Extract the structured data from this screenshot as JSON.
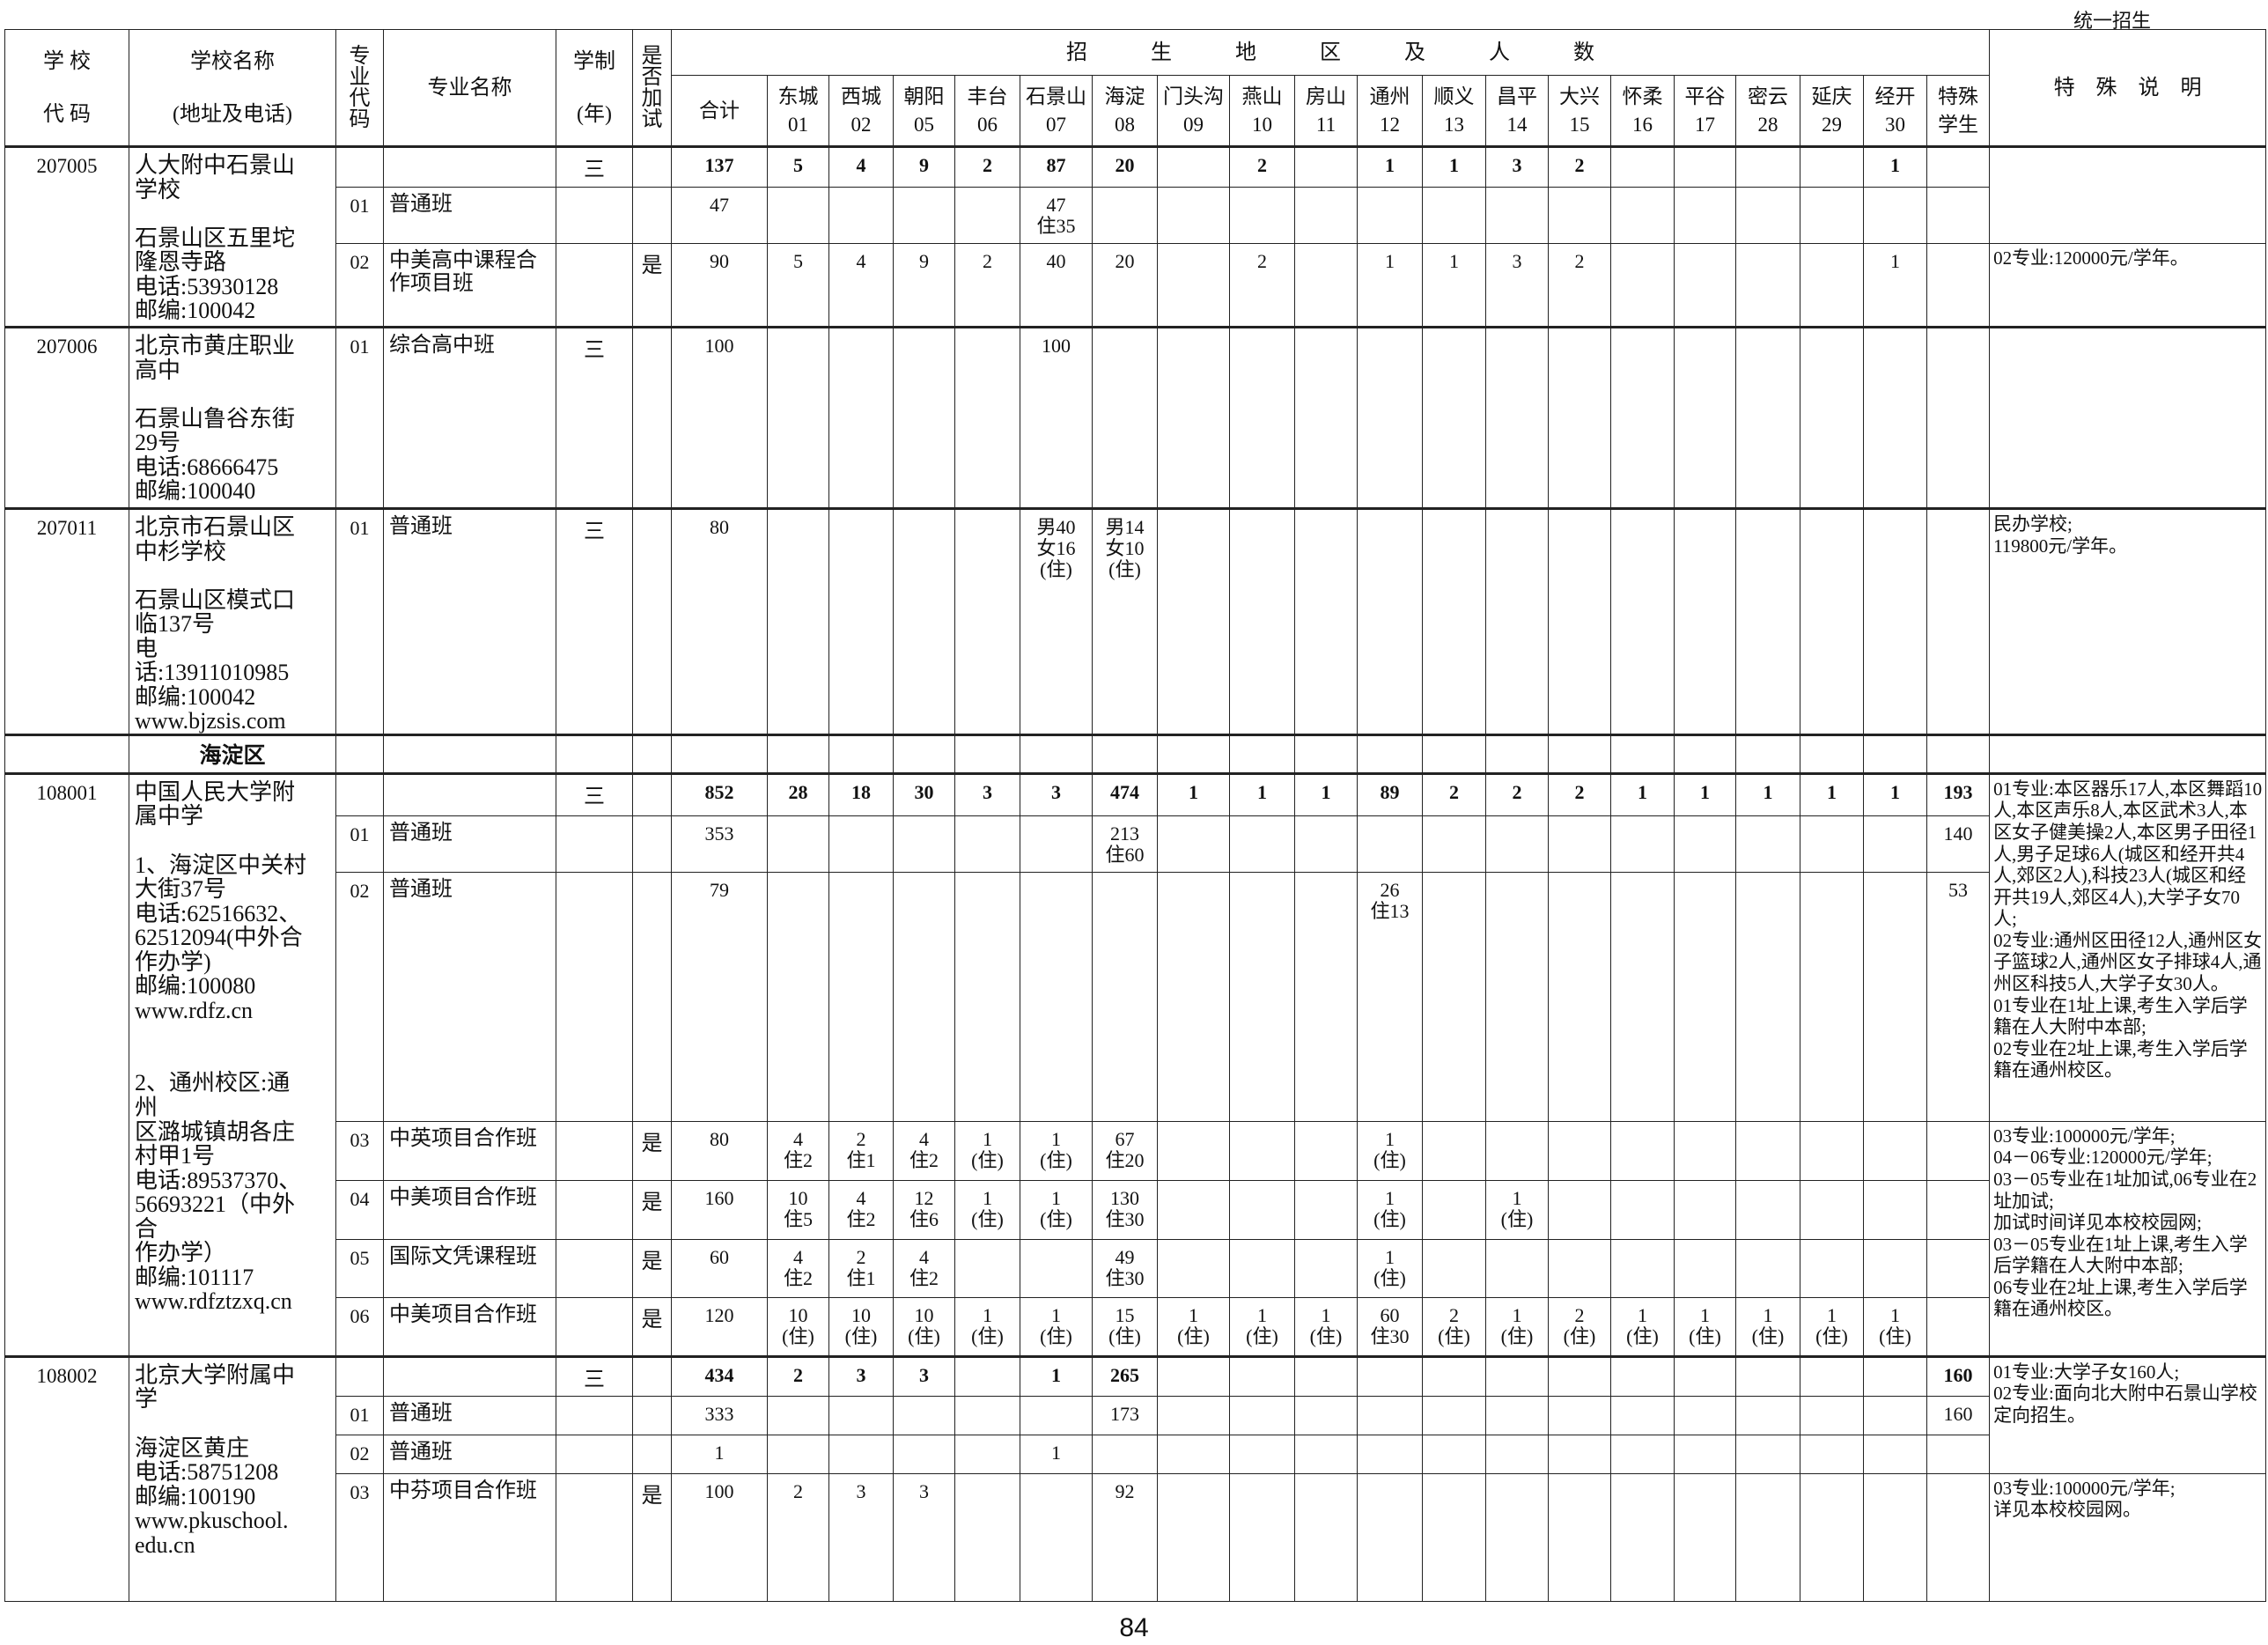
{
  "header": {
    "top_right": "统一招生",
    "school_code": "学 校\n\n代 码",
    "school_name": "学校名称\n\n(地址及电话)",
    "major_code": "专\n业\n代\n码",
    "major_name": "专业名称",
    "years": "学制\n\n(年)",
    "extra_test": "是\n否\n加\n试",
    "region_title": "招　　　生　　　地　　　区　　　及　　　人　　　数",
    "notes": "特　殊　说　明",
    "regions": [
      {
        "name": "合计",
        "code": ""
      },
      {
        "name": "东城",
        "code": "01"
      },
      {
        "name": "西城",
        "code": "02"
      },
      {
        "name": "朝阳",
        "code": "05"
      },
      {
        "name": "丰台",
        "code": "06"
      },
      {
        "name": "石景山",
        "code": "07"
      },
      {
        "name": "海淀",
        "code": "08"
      },
      {
        "name": "门头沟",
        "code": "09"
      },
      {
        "name": "燕山",
        "code": "10"
      },
      {
        "name": "房山",
        "code": "11"
      },
      {
        "name": "通州",
        "code": "12"
      },
      {
        "name": "顺义",
        "code": "13"
      },
      {
        "name": "昌平",
        "code": "14"
      },
      {
        "name": "大兴",
        "code": "15"
      },
      {
        "name": "怀柔",
        "code": "16"
      },
      {
        "name": "平谷",
        "code": "17"
      },
      {
        "name": "密云",
        "code": "28"
      },
      {
        "name": "延庆",
        "code": "29"
      },
      {
        "name": "经开",
        "code": "30"
      },
      {
        "name": "特殊",
        "code": "学生"
      }
    ]
  },
  "schools": [
    {
      "code": "207005",
      "name": "人大附中石景山学校",
      "info": "\n石景山区五里坨\n隆恩寺路\n电话:53930128\n邮编:100042",
      "majors": [
        {
          "total": true,
          "major_code": "",
          "major_name": "",
          "years": "三",
          "extra_test": "",
          "counts": [
            "137",
            "5",
            "4",
            "9",
            "2",
            "87",
            "20",
            "",
            "2",
            "",
            "1",
            "1",
            "3",
            "2",
            "",
            "",
            "",
            "",
            "1",
            ""
          ]
        },
        {
          "major_code": "01",
          "major_name": "普通班",
          "years": "",
          "extra_test": "",
          "counts": [
            "47",
            "",
            "",
            "",
            "",
            "47\n住35",
            "",
            "",
            "",
            "",
            "",
            "",
            "",
            "",
            "",
            "",
            "",
            "",
            "",
            ""
          ]
        },
        {
          "major_code": "02",
          "major_name": "中美高中课程合作项目班",
          "years": "",
          "extra_test": "是",
          "counts": [
            "90",
            "5",
            "4",
            "9",
            "2",
            "40",
            "20",
            "",
            "2",
            "",
            "1",
            "1",
            "3",
            "2",
            "",
            "",
            "",
            "",
            "1",
            ""
          ]
        }
      ],
      "notes": [
        {
          "text": "",
          "span": 2
        },
        {
          "text": "02专业:120000元/学年。",
          "span": 1
        }
      ]
    },
    {
      "code": "207006",
      "name": "北京市黄庄职业高中",
      "info": "\n石景山鲁谷东街\n29号\n电话:68666475\n邮编:100040",
      "majors": [
        {
          "major_code": "01",
          "major_name": "综合高中班",
          "years": "三",
          "extra_test": "",
          "counts": [
            "100",
            "",
            "",
            "",
            "",
            "100",
            "",
            "",
            "",
            "",
            "",
            "",
            "",
            "",
            "",
            "",
            "",
            "",
            "",
            ""
          ]
        }
      ],
      "notes": [
        {
          "text": "",
          "span": 1
        }
      ]
    },
    {
      "code": "207011",
      "name": "北京市石景山区中杉学校",
      "info": "\n石景山区模式口\n临137号\n电话:13911010985\n邮编:100042\nwww.bjzsis.com",
      "majors": [
        {
          "major_code": "01",
          "major_name": "普通班",
          "years": "三",
          "extra_test": "",
          "counts": [
            "80",
            "",
            "",
            "",
            "",
            "男40\n女16\n(住)",
            "男14\n女10\n(住)",
            "",
            "",
            "",
            "",
            "",
            "",
            "",
            "",
            "",
            "",
            "",
            "",
            ""
          ]
        }
      ],
      "notes": [
        {
          "text": "民办学校;\n119800元/学年。",
          "span": 1
        }
      ]
    },
    {
      "district": "海淀区"
    },
    {
      "code": "108001",
      "name": "中国人民大学附属中学",
      "info": "\n1、海淀区中关村\n大街37号\n电话:62516632、\n62512094(中外合\n作办学)\n邮编:100080\nwww.rdfz.cn\n\n\n2、通州校区:通州\n区潞城镇胡各庄\n村甲1号\n电话:89537370、\n56693221（中外合\n作办学）\n邮编:101117\nwww.rdfztzxq.cn",
      "majors": [
        {
          "total": true,
          "major_code": "",
          "major_name": "",
          "years": "三",
          "extra_test": "",
          "counts": [
            "852",
            "28",
            "18",
            "30",
            "3",
            "3",
            "474",
            "1",
            "1",
            "1",
            "89",
            "2",
            "2",
            "2",
            "1",
            "1",
            "1",
            "1",
            "1",
            "193"
          ]
        },
        {
          "major_code": "01",
          "major_name": "普通班",
          "years": "",
          "extra_test": "",
          "counts": [
            "353",
            "",
            "",
            "",
            "",
            "",
            "213\n住60",
            "",
            "",
            "",
            "",
            "",
            "",
            "",
            "",
            "",
            "",
            "",
            "",
            "140"
          ]
        },
        {
          "major_code": "02",
          "major_name": "普通班",
          "years": "",
          "extra_test": "",
          "counts": [
            "79",
            "",
            "",
            "",
            "",
            "",
            "",
            "",
            "",
            "",
            "26\n住13",
            "",
            "",
            "",
            "",
            "",
            "",
            "",
            "",
            "53"
          ]
        },
        {
          "major_code": "03",
          "major_name": "中英项目合作班",
          "years": "",
          "extra_test": "是",
          "counts": [
            "80",
            "4\n住2",
            "2\n住1",
            "4\n住2",
            "1\n(住)",
            "1\n(住)",
            "67\n住20",
            "",
            "",
            "",
            "1\n(住)",
            "",
            "",
            "",
            "",
            "",
            "",
            "",
            "",
            ""
          ]
        },
        {
          "major_code": "04",
          "major_name": "中美项目合作班",
          "years": "",
          "extra_test": "是",
          "counts": [
            "160",
            "10\n住5",
            "4\n住2",
            "12\n住6",
            "1\n(住)",
            "1\n(住)",
            "130\n住30",
            "",
            "",
            "",
            "1\n(住)",
            "",
            "1\n(住)",
            "",
            "",
            "",
            "",
            "",
            "",
            ""
          ]
        },
        {
          "major_code": "05",
          "major_name": "国际文凭课程班",
          "years": "",
          "extra_test": "是",
          "counts": [
            "60",
            "4\n住2",
            "2\n住1",
            "4\n住2",
            "",
            "",
            "49\n住30",
            "",
            "",
            "",
            "1\n(住)",
            "",
            "",
            "",
            "",
            "",
            "",
            "",
            "",
            ""
          ]
        },
        {
          "major_code": "06",
          "major_name": "中美项目合作班",
          "years": "",
          "extra_test": "是",
          "counts": [
            "120",
            "10\n(住)",
            "10\n(住)",
            "10\n(住)",
            "1\n(住)",
            "1\n(住)",
            "15\n(住)",
            "1\n(住)",
            "1\n(住)",
            "1\n(住)",
            "60\n住30",
            "2\n(住)",
            "1\n(住)",
            "2\n(住)",
            "1\n(住)",
            "1\n(住)",
            "1\n(住)",
            "1\n(住)",
            "1\n(住)",
            ""
          ]
        }
      ],
      "notes": [
        {
          "text": "01专业:本区器乐17人,本区舞蹈10人,本区声乐8人,本区武术3人,本区女子健美操2人,本区男子田径1人,男子足球6人(城区和经开共4人,郊区2人),科技23人(城区和经开共19人,郊区4人),大学子女70人;\n02专业:通州区田径12人,通州区女子篮球2人,通州区女子排球4人,通州区科技5人,大学子女30人。\n01专业在1址上课,考生入学后学籍在人大附中本部;\n02专业在2址上课,考生入学后学籍在通州校区。",
          "span": 3
        },
        {
          "text": "03专业:100000元/学年;\n04－06专业:120000元/学年;\n03－05专业在1址加试,06专业在2址加试;\n加试时间详见本校校园网;\n03－05专业在1址上课,考生入学后学籍在人大附中本部;\n06专业在2址上课,考生入学后学籍在通州校区。",
          "span": 4
        }
      ]
    },
    {
      "code": "108002",
      "name": "北京大学附属中学",
      "info": "\n海淀区黄庄\n电话:58751208\n邮编:100190\nwww.pkuschool.\nedu.cn",
      "majors": [
        {
          "total": true,
          "major_code": "",
          "major_name": "",
          "years": "三",
          "extra_test": "",
          "counts": [
            "434",
            "2",
            "3",
            "3",
            "",
            "1",
            "265",
            "",
            "",
            "",
            "",
            "",
            "",
            "",
            "",
            "",
            "",
            "",
            "",
            "160"
          ]
        },
        {
          "major_code": "01",
          "major_name": "普通班",
          "years": "",
          "extra_test": "",
          "counts": [
            "333",
            "",
            "",
            "",
            "",
            "",
            "173",
            "",
            "",
            "",
            "",
            "",
            "",
            "",
            "",
            "",
            "",
            "",
            "",
            "160"
          ]
        },
        {
          "major_code": "02",
          "major_name": "普通班",
          "years": "",
          "extra_test": "",
          "counts": [
            "1",
            "",
            "",
            "",
            "",
            "1",
            "",
            "",
            "",
            "",
            "",
            "",
            "",
            "",
            "",
            "",
            "",
            "",
            "",
            ""
          ]
        },
        {
          "major_code": "03",
          "major_name": "中芬项目合作班",
          "years": "",
          "extra_test": "是",
          "counts": [
            "100",
            "2",
            "3",
            "3",
            "",
            "",
            "92",
            "",
            "",
            "",
            "",
            "",
            "",
            "",
            "",
            "",
            "",
            "",
            "",
            ""
          ]
        }
      ],
      "notes": [
        {
          "text": "01专业:大学子女160人;\n02专业:面向北大附中石景山学校定向招生。",
          "span": 3
        },
        {
          "text": "03专业:100000元/学年;\n详见本校校园网。",
          "span": 1
        }
      ]
    }
  ],
  "page_number": "84"
}
